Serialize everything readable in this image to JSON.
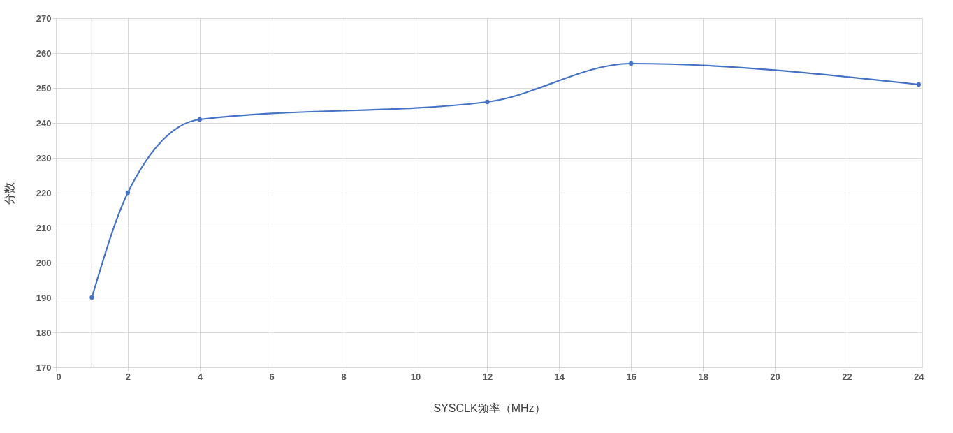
{
  "chart_data": {
    "type": "line",
    "xlabel": "SYSCLK频率（MHz）",
    "ylabel": "分数",
    "x": [
      1,
      2,
      4,
      12,
      16,
      24
    ],
    "series": [
      {
        "color": "#4472c4",
        "values": [
          190,
          220,
          241,
          246,
          257,
          251
        ]
      }
    ],
    "xlim": [
      0,
      24.1
    ],
    "xticks": [
      0,
      2,
      4,
      6,
      8,
      10,
      12,
      14,
      16,
      18,
      20,
      22,
      24
    ],
    "ylim": [
      170,
      270
    ],
    "yticks": [
      170,
      180,
      190,
      200,
      210,
      220,
      230,
      240,
      250,
      260,
      270
    ],
    "grid": true,
    "marker": "circle",
    "line_style": "solid",
    "ref_lines": [
      {
        "axis": "x",
        "value": 1,
        "color": "#a6a6a6"
      }
    ]
  }
}
